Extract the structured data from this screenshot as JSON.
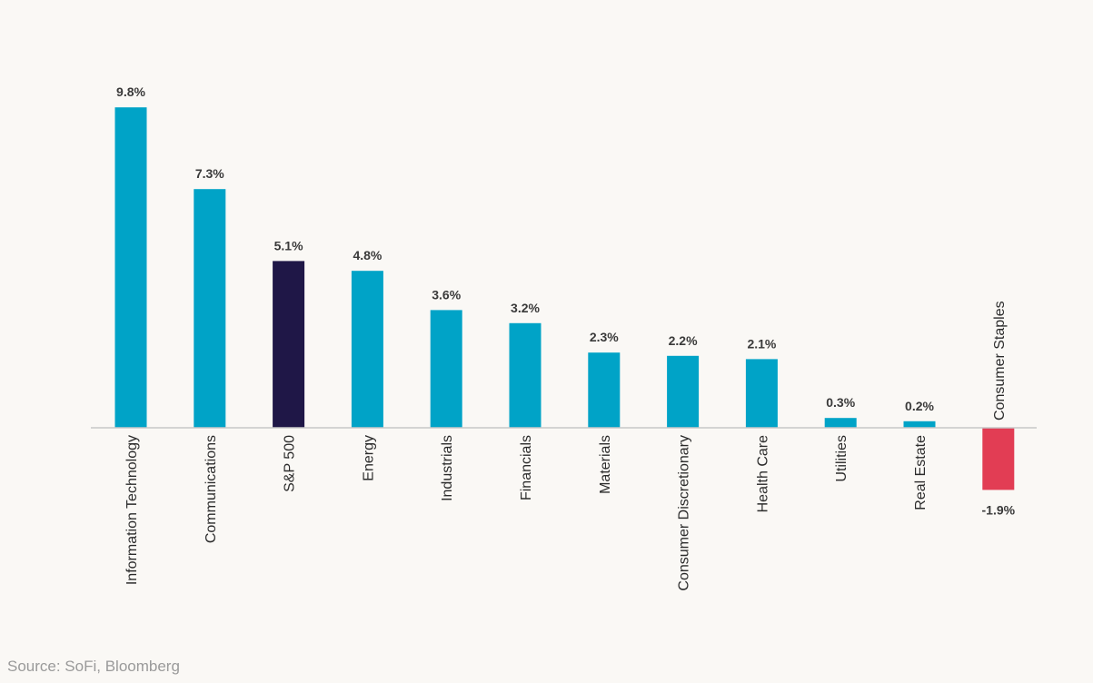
{
  "chart_data": {
    "type": "bar",
    "categories": [
      "Information Technology",
      "Communications",
      "S&P 500",
      "Energy",
      "Industrials",
      "Financials",
      "Materials",
      "Consumer Discretionary",
      "Health Care",
      "Utilities",
      "Real Estate",
      "Consumer Staples"
    ],
    "values": [
      9.8,
      7.3,
      5.1,
      4.8,
      3.6,
      3.2,
      2.3,
      2.2,
      2.1,
      0.3,
      0.2,
      -1.9
    ],
    "value_labels": [
      "9.8%",
      "7.3%",
      "5.1%",
      "4.8%",
      "3.6%",
      "3.2%",
      "2.3%",
      "2.2%",
      "2.1%",
      "0.3%",
      "0.2%",
      "-1.9%"
    ],
    "title": "",
    "xlabel": "",
    "ylabel": "",
    "ylim": [
      -1.9,
      9.8
    ],
    "grid": false,
    "legend": "none",
    "colors": {
      "sector": "#00a3c7",
      "benchmark": "#1f1747",
      "negative": "#e23d54",
      "axis": "#c8c8c8"
    },
    "highlight_category": "S&P 500"
  },
  "source": "Source: SoFi, Bloomberg"
}
